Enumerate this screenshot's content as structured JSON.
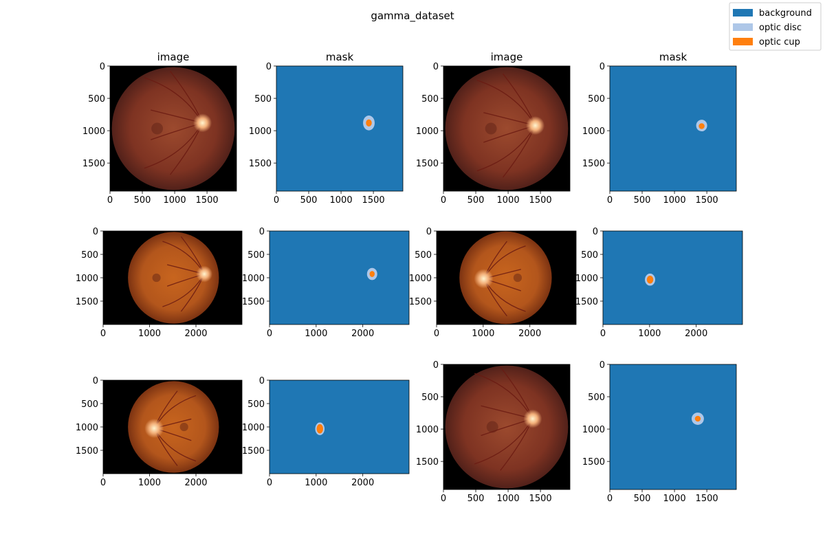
{
  "chart_data": {
    "type": "image-grid",
    "title": "gamma_dataset",
    "legend": {
      "placement": "top-right",
      "entries": [
        {
          "label": "background",
          "color": "#1f77b4"
        },
        {
          "label": "optic disc",
          "color": "#aec7e8"
        },
        {
          "label": "optic cup",
          "color": "#ff7f0e"
        }
      ]
    },
    "column_titles": [
      "image",
      "mask",
      "image",
      "mask"
    ],
    "panels": [
      {
        "kind": "image",
        "width": 1956,
        "height": 1934,
        "xticks": [
          0,
          500,
          1000,
          1500
        ],
        "yticks": [
          0,
          500,
          1000,
          1500
        ],
        "fundus": {
          "center": [
            978,
            967
          ],
          "radius": 950,
          "disc": [
            1430,
            880,
            90
          ],
          "tint": "red"
        }
      },
      {
        "kind": "mask",
        "width": 1956,
        "height": 1934,
        "xticks": [
          0,
          500,
          1000,
          1500
        ],
        "yticks": [
          0,
          500,
          1000,
          1500
        ],
        "disc": [
          1430,
          880,
          90,
          115
        ],
        "cup": [
          1430,
          880,
          45,
          55
        ]
      },
      {
        "kind": "image",
        "width": 1956,
        "height": 1934,
        "xticks": [
          0,
          500,
          1000,
          1500
        ],
        "yticks": [
          0,
          500,
          1000,
          1500
        ],
        "fundus": {
          "center": [
            978,
            967
          ],
          "radius": 950,
          "disc": [
            1420,
            920,
            90
          ],
          "tint": "red"
        }
      },
      {
        "kind": "mask",
        "width": 1956,
        "height": 1934,
        "xticks": [
          0,
          500,
          1000,
          1500
        ],
        "yticks": [
          0,
          500,
          1000,
          1500
        ],
        "disc": [
          1420,
          920,
          85,
          90
        ],
        "cup": [
          1420,
          930,
          45,
          45
        ]
      },
      {
        "kind": "image",
        "width": 2992,
        "height": 2000,
        "xticks": [
          0,
          1000,
          2000
        ],
        "yticks": [
          0,
          500,
          1000,
          1500
        ],
        "fundus": {
          "center": [
            1515,
            1000
          ],
          "radius": 980,
          "disc": [
            2180,
            920,
            110
          ],
          "tint": "orange"
        }
      },
      {
        "kind": "mask",
        "width": 2992,
        "height": 2000,
        "xticks": [
          0,
          1000,
          2000
        ],
        "yticks": [
          0,
          500,
          1000,
          1500
        ],
        "disc": [
          2200,
          920,
          110,
          130
        ],
        "cup": [
          2200,
          920,
          55,
          65
        ]
      },
      {
        "kind": "image",
        "width": 2992,
        "height": 2000,
        "xticks": [
          0,
          1000,
          2000
        ],
        "yticks": [
          0,
          500,
          1000,
          1500
        ],
        "fundus": {
          "center": [
            1480,
            1000
          ],
          "radius": 990,
          "disc": [
            1010,
            1020,
            130
          ],
          "tint": "orange"
        }
      },
      {
        "kind": "mask",
        "width": 2992,
        "height": 2000,
        "xticks": [
          0,
          1000,
          2000
        ],
        "yticks": [
          0,
          500,
          1000,
          1500
        ],
        "disc": [
          1010,
          1040,
          110,
          130
        ],
        "cup": [
          1010,
          1040,
          70,
          85
        ]
      },
      {
        "kind": "image",
        "width": 2992,
        "height": 2000,
        "xticks": [
          0,
          1000,
          2000
        ],
        "yticks": [
          0,
          500,
          1000,
          1500
        ],
        "fundus": {
          "center": [
            1515,
            1000
          ],
          "radius": 980,
          "disc": [
            1100,
            1030,
            130
          ],
          "tint": "orange"
        }
      },
      {
        "kind": "mask",
        "width": 2992,
        "height": 2000,
        "xticks": [
          0,
          1000,
          2000
        ],
        "yticks": [
          0,
          500,
          1000,
          1500
        ],
        "disc": [
          1080,
          1040,
          100,
          135
        ],
        "cup": [
          1080,
          1040,
          70,
          100
        ]
      },
      {
        "kind": "image",
        "width": 1956,
        "height": 1934,
        "xticks": [
          0,
          500,
          1000,
          1500
        ],
        "yticks": [
          0,
          500,
          1000,
          1500
        ],
        "fundus": {
          "center": [
            978,
            967
          ],
          "radius": 950,
          "disc": [
            1380,
            840,
            90
          ],
          "tint": "red"
        }
      },
      {
        "kind": "mask",
        "width": 1956,
        "height": 1934,
        "xticks": [
          0,
          500,
          1000,
          1500
        ],
        "yticks": [
          0,
          500,
          1000,
          1500
        ],
        "disc": [
          1360,
          840,
          95,
          95
        ],
        "cup": [
          1360,
          840,
          45,
          45
        ]
      }
    ]
  }
}
